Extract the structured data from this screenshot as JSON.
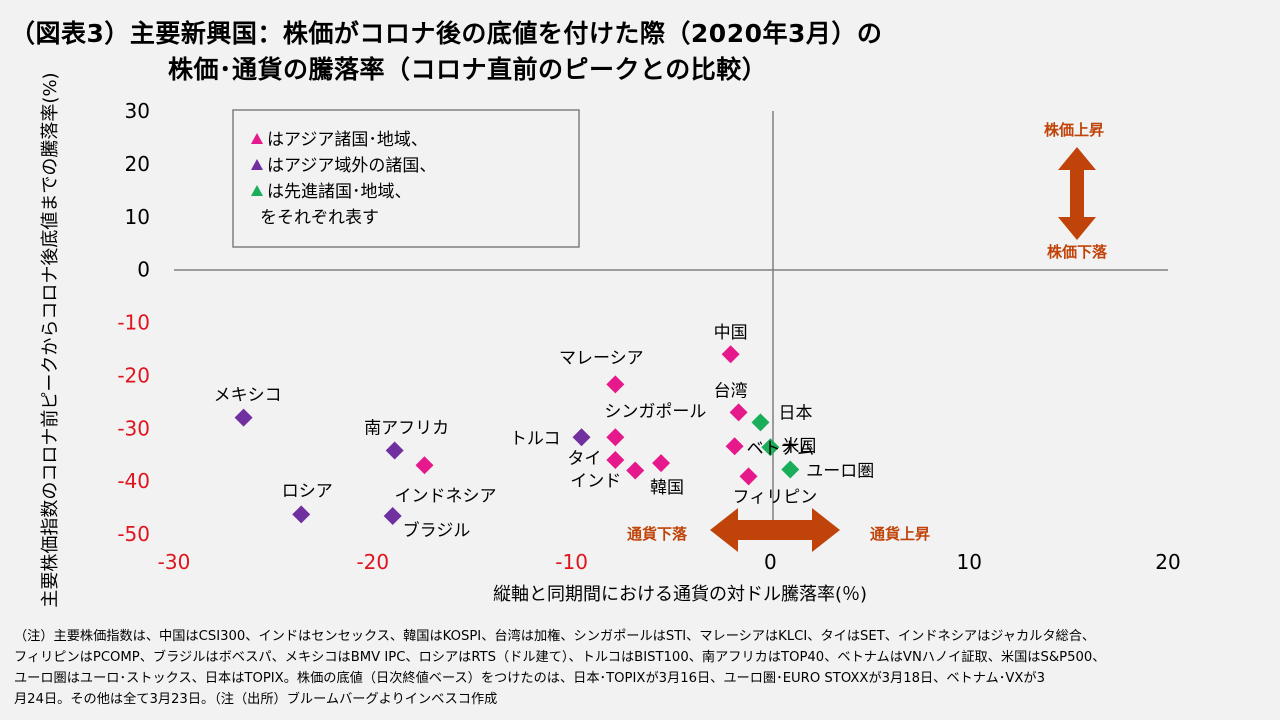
{
  "title": {
    "line1": "（図表3）主要新興国：株価がコロナ後の底値を付けた際（2020年3月）の",
    "line2": "株価･通貨の騰落率（コロナ直前のピークとの比較）"
  },
  "legend": {
    "items": [
      {
        "marker_color": "#e6198c",
        "text": "はアジア諸国･地域、"
      },
      {
        "marker_color": "#7030a0",
        "text": "はアジア域外の諸国、"
      },
      {
        "marker_color": "#1aae5a",
        "text": "は先進諸国･地域、"
      }
    ],
    "last_line": "をそれぞれ表す"
  },
  "annotations": {
    "stock_up": "株価上昇",
    "stock_down": "株価下落",
    "fx_down": "通貨下落",
    "fx_up": "通貨上昇",
    "arrow_color": "#c0440a"
  },
  "chart_data": {
    "type": "scatter",
    "xlabel": "縦軸と同期間における通貨の対ドル騰落率(％)",
    "ylabel": "主要株価指数のコロナ前ピークからコロナ後底値までの騰落率(%)",
    "xlim": [
      -30,
      20
    ],
    "ylim": [
      -50,
      30
    ],
    "x_ticks": [
      -30,
      -20,
      -10,
      0,
      10,
      20
    ],
    "y_ticks": [
      30,
      20,
      10,
      0,
      -10,
      -20,
      -30,
      -40,
      -50
    ],
    "negative_tick_color": "#e0141e",
    "positive_tick_color": "#000000",
    "colors": {
      "asia": "#e6198c",
      "non_asia": "#7030a0",
      "developed": "#1aae5a"
    },
    "points": [
      {
        "label": "中国",
        "x": -2.0,
        "y": -16.0,
        "group": "asia"
      },
      {
        "label": "マレーシア",
        "x": -7.8,
        "y": -21.7,
        "group": "asia"
      },
      {
        "label": "台湾",
        "x": -1.6,
        "y": -27.0,
        "group": "asia"
      },
      {
        "label": "シンガポール",
        "x": -7.8,
        "y": -31.7,
        "group": "asia"
      },
      {
        "label": "タイ",
        "x": -7.8,
        "y": -36.0,
        "group": "asia"
      },
      {
        "label": "インド",
        "x": -6.8,
        "y": -38.0,
        "group": "asia"
      },
      {
        "label": "韓国",
        "x": -5.5,
        "y": -36.6,
        "group": "asia"
      },
      {
        "label": "ベトナム",
        "x": -1.8,
        "y": -33.4,
        "group": "asia"
      },
      {
        "label": "フィリピン",
        "x": -1.1,
        "y": -39.1,
        "group": "asia"
      },
      {
        "label": "インドネシア",
        "x": -17.4,
        "y": -37.0,
        "group": "asia"
      },
      {
        "label": "メキシコ",
        "x": -26.5,
        "y": -28.0,
        "group": "non_asia"
      },
      {
        "label": "南アフリカ",
        "x": -18.9,
        "y": -34.2,
        "group": "non_asia"
      },
      {
        "label": "ロシア",
        "x": -23.6,
        "y": -46.3,
        "group": "non_asia"
      },
      {
        "label": "ブラジル",
        "x": -19.0,
        "y": -46.6,
        "group": "non_asia"
      },
      {
        "label": "トルコ",
        "x": -9.5,
        "y": -31.7,
        "group": "non_asia"
      },
      {
        "label": "日本",
        "x": -0.5,
        "y": -28.9,
        "group": "developed"
      },
      {
        "label": "米国",
        "x": 0.0,
        "y": -33.6,
        "group": "developed"
      },
      {
        "label": "ユーロ圏",
        "x": 1.0,
        "y": -37.8,
        "group": "developed"
      }
    ]
  },
  "footnote": {
    "lines": [
      "（注）主要株価指数は、中国はCSI300、インドはセンセックス、韓国はKOSPI、台湾は加権、シンガポールはSTI、マレーシアはKLCI、タイはSET、インドネシアはジャカルタ総合、",
      "フィリピンはPCOMP、ブラジルはボベスパ、メキシコはBMV IPC、ロシアはRTS（ドル建て）、トルコはBIST100、南アフリカはTOP40、ベトナムはVNハノイ証取、米国はS&P500、",
      "ユーロ圏はユーロ･ストックス、日本はTOPIX。株価の底値（日次終値ベース）をつけたのは、日本･TOPIXが3月16日、ユーロ圏･EURO STOXXが3月18日、ベトナム･VXが3",
      "月24日。その他は全て3月23日。（注（出所）ブルームバーグよりインベスコ作成"
    ]
  }
}
